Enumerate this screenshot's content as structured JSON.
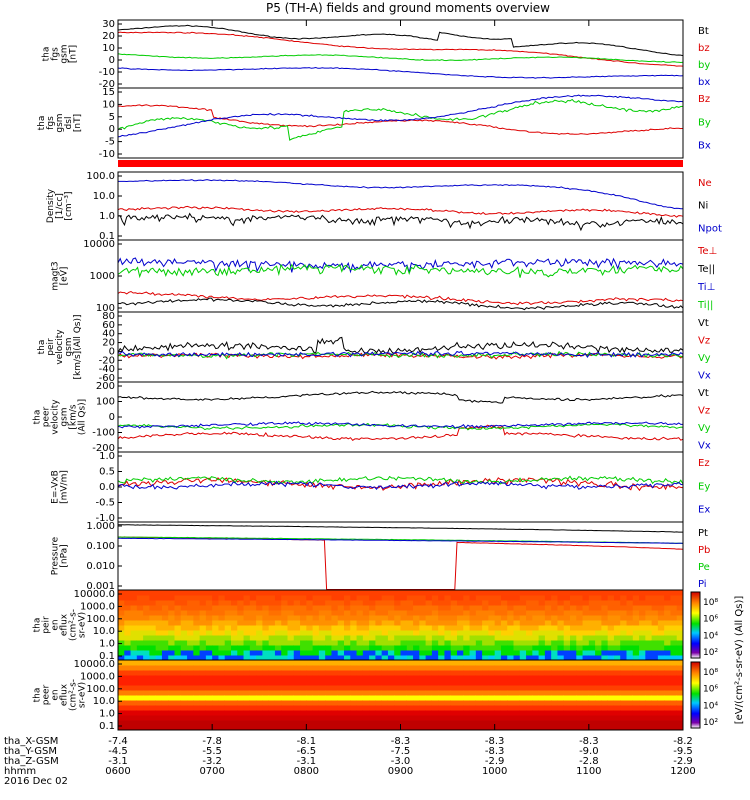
{
  "title": "P5 (TH-A) fields and ground moments overview",
  "chart_data": {
    "type": "line",
    "title": "P5 (TH-A) fields and ground moments overview",
    "x_ticks": [
      "0600",
      "0700",
      "0800",
      "0900",
      "1000",
      "1100",
      "1200"
    ],
    "x_range_hours": [
      6,
      12
    ],
    "ephemeris": [
      {
        "label": "tha_X-GSM",
        "values": [
          "-7.4",
          "-7.8",
          "-8.1",
          "-8.3",
          "-8.3",
          "-8.3",
          "-8.2"
        ]
      },
      {
        "label": "tha_Y-GSM",
        "values": [
          "-4.5",
          "-5.5",
          "-6.5",
          "-7.5",
          "-8.3",
          "-9.0",
          "-9.5"
        ]
      },
      {
        "label": "tha_Z-GSM",
        "values": [
          "-3.1",
          "-3.2",
          "-3.1",
          "-3.0",
          "-2.9",
          "-2.8",
          "-2.9"
        ]
      },
      {
        "label": "hhmm",
        "values": [
          "0600",
          "0700",
          "0800",
          "0900",
          "1000",
          "1100",
          "1200"
        ]
      }
    ],
    "date": "2016 Dec 02",
    "panels": [
      {
        "ylabel": [
          "tha",
          "fgs",
          "gsm",
          "[nT]"
        ],
        "scale": "linear",
        "ylim": [
          -20,
          30
        ],
        "yticks": [
          "30",
          "20",
          "10",
          "0",
          "-10",
          "-20"
        ],
        "series": [
          {
            "name": "Bt",
            "color": "#000000"
          },
          {
            "name": "bz",
            "color": "#dd0000"
          },
          {
            "name": "by",
            "color": "#00cc00"
          },
          {
            "name": "bx",
            "color": "#0000cc"
          }
        ]
      },
      {
        "ylabel": [
          "tha",
          "fgs",
          "gsm",
          "dsl",
          "[nT]"
        ],
        "scale": "linear",
        "ylim": [
          -15,
          15
        ],
        "yticks": [
          "15",
          "10",
          "5",
          "0",
          "-5",
          "-10"
        ],
        "series": [
          {
            "name": "Bz",
            "color": "#dd0000"
          },
          {
            "name": "By",
            "color": "#00cc00"
          },
          {
            "name": "Bx",
            "color": "#0000cc"
          }
        ]
      },
      {
        "ylabel": [
          "Density",
          "[1/cc]",
          "[cm^-3]"
        ],
        "scale": "log",
        "ylim": [
          0.1,
          150
        ],
        "yticks": [
          "100.0",
          "10.0",
          "1.0",
          "0.1"
        ],
        "series": [
          {
            "name": "Ne",
            "color": "#dd0000"
          },
          {
            "name": "Ni",
            "color": "#000000"
          },
          {
            "name": "Npot",
            "color": "#0000cc"
          }
        ]
      },
      {
        "ylabel": [
          "magt3",
          "[eV]"
        ],
        "scale": "log",
        "ylim": [
          100,
          10000
        ],
        "yticks": [
          "10000",
          "1000",
          "100"
        ],
        "series": [
          {
            "name": "Te⊥",
            "color": "#dd0000"
          },
          {
            "name": "Te||",
            "color": "#000000"
          },
          {
            "name": "Ti⊥",
            "color": "#0000cc"
          },
          {
            "name": "Ti||",
            "color": "#00cc00"
          }
        ]
      },
      {
        "ylabel": [
          "tha",
          "peir",
          "velocity",
          "gsm",
          "[km/s](All Qs)]"
        ],
        "scale": "linear",
        "ylim": [
          -60,
          100
        ],
        "yticks": [
          "80",
          "60",
          "40",
          "20",
          "0",
          "-20",
          "-40",
          "-60"
        ],
        "series": [
          {
            "name": "Vt",
            "color": "#000000"
          },
          {
            "name": "Vz",
            "color": "#dd0000"
          },
          {
            "name": "Vy",
            "color": "#00cc00"
          },
          {
            "name": "Vx",
            "color": "#0000cc"
          }
        ]
      },
      {
        "ylabel": [
          "tha",
          "peer",
          "velocity",
          "gsm",
          "[km/s",
          "(All Qs)]"
        ],
        "scale": "linear",
        "ylim": [
          -200,
          200
        ],
        "yticks": [
          "200",
          "100",
          "0",
          "-100",
          "-200"
        ],
        "series": [
          {
            "name": "Vt",
            "color": "#000000"
          },
          {
            "name": "Vz",
            "color": "#dd0000"
          },
          {
            "name": "Vy",
            "color": "#00cc00"
          },
          {
            "name": "Vx",
            "color": "#0000cc"
          }
        ]
      },
      {
        "ylabel": [
          "E=-VxB",
          "[mV/m]"
        ],
        "scale": "linear",
        "ylim": [
          -1.0,
          1.0
        ],
        "yticks": [
          "1.0",
          "0.5",
          "0.0",
          "-0.5",
          "-1.0"
        ],
        "series": [
          {
            "name": "Ez",
            "color": "#dd0000"
          },
          {
            "name": "Ey",
            "color": "#00cc00"
          },
          {
            "name": "Ex",
            "color": "#0000cc"
          }
        ]
      },
      {
        "ylabel": [
          "Pressure",
          "[nPa]"
        ],
        "scale": "log",
        "ylim": [
          0.001,
          1.2
        ],
        "yticks": [
          "1.000",
          "0.100",
          "0.010",
          "0.001"
        ],
        "series": [
          {
            "name": "Pt",
            "color": "#000000"
          },
          {
            "name": "Pb",
            "color": "#dd0000"
          },
          {
            "name": "Pe",
            "color": "#00cc00"
          },
          {
            "name": "Pi",
            "color": "#0000cc"
          }
        ]
      },
      {
        "ylabel": [
          "tha",
          "peir",
          "en",
          "eflux",
          "(cm^2-s-",
          "sr-eV)"
        ],
        "scale": "log",
        "ylim": [
          0.1,
          30000
        ],
        "yticks": [
          "10000.0",
          "1000.0",
          "100.0",
          "10.0",
          "1.0",
          "0.1"
        ],
        "spectrogram": true,
        "colorbar_ticks": [
          "10^8",
          "10^6",
          "10^4",
          "10^2"
        ]
      },
      {
        "ylabel": [
          "tha",
          "peer",
          "en",
          "eflux",
          "(cm^2-s-",
          "sr-eV)"
        ],
        "scale": "log",
        "ylim": [
          0.1,
          30000
        ],
        "yticks": [
          "10000.0",
          "1000.0",
          "100.0",
          "10.0",
          "1.0",
          "0.1"
        ],
        "spectrogram": true,
        "colorbar_ticks": [
          "10^8",
          "10^6",
          "10^4",
          "10^2"
        ]
      }
    ],
    "colorbar_label": "[eV/(cm^2-s-sr-eV) (All Qs)]"
  }
}
